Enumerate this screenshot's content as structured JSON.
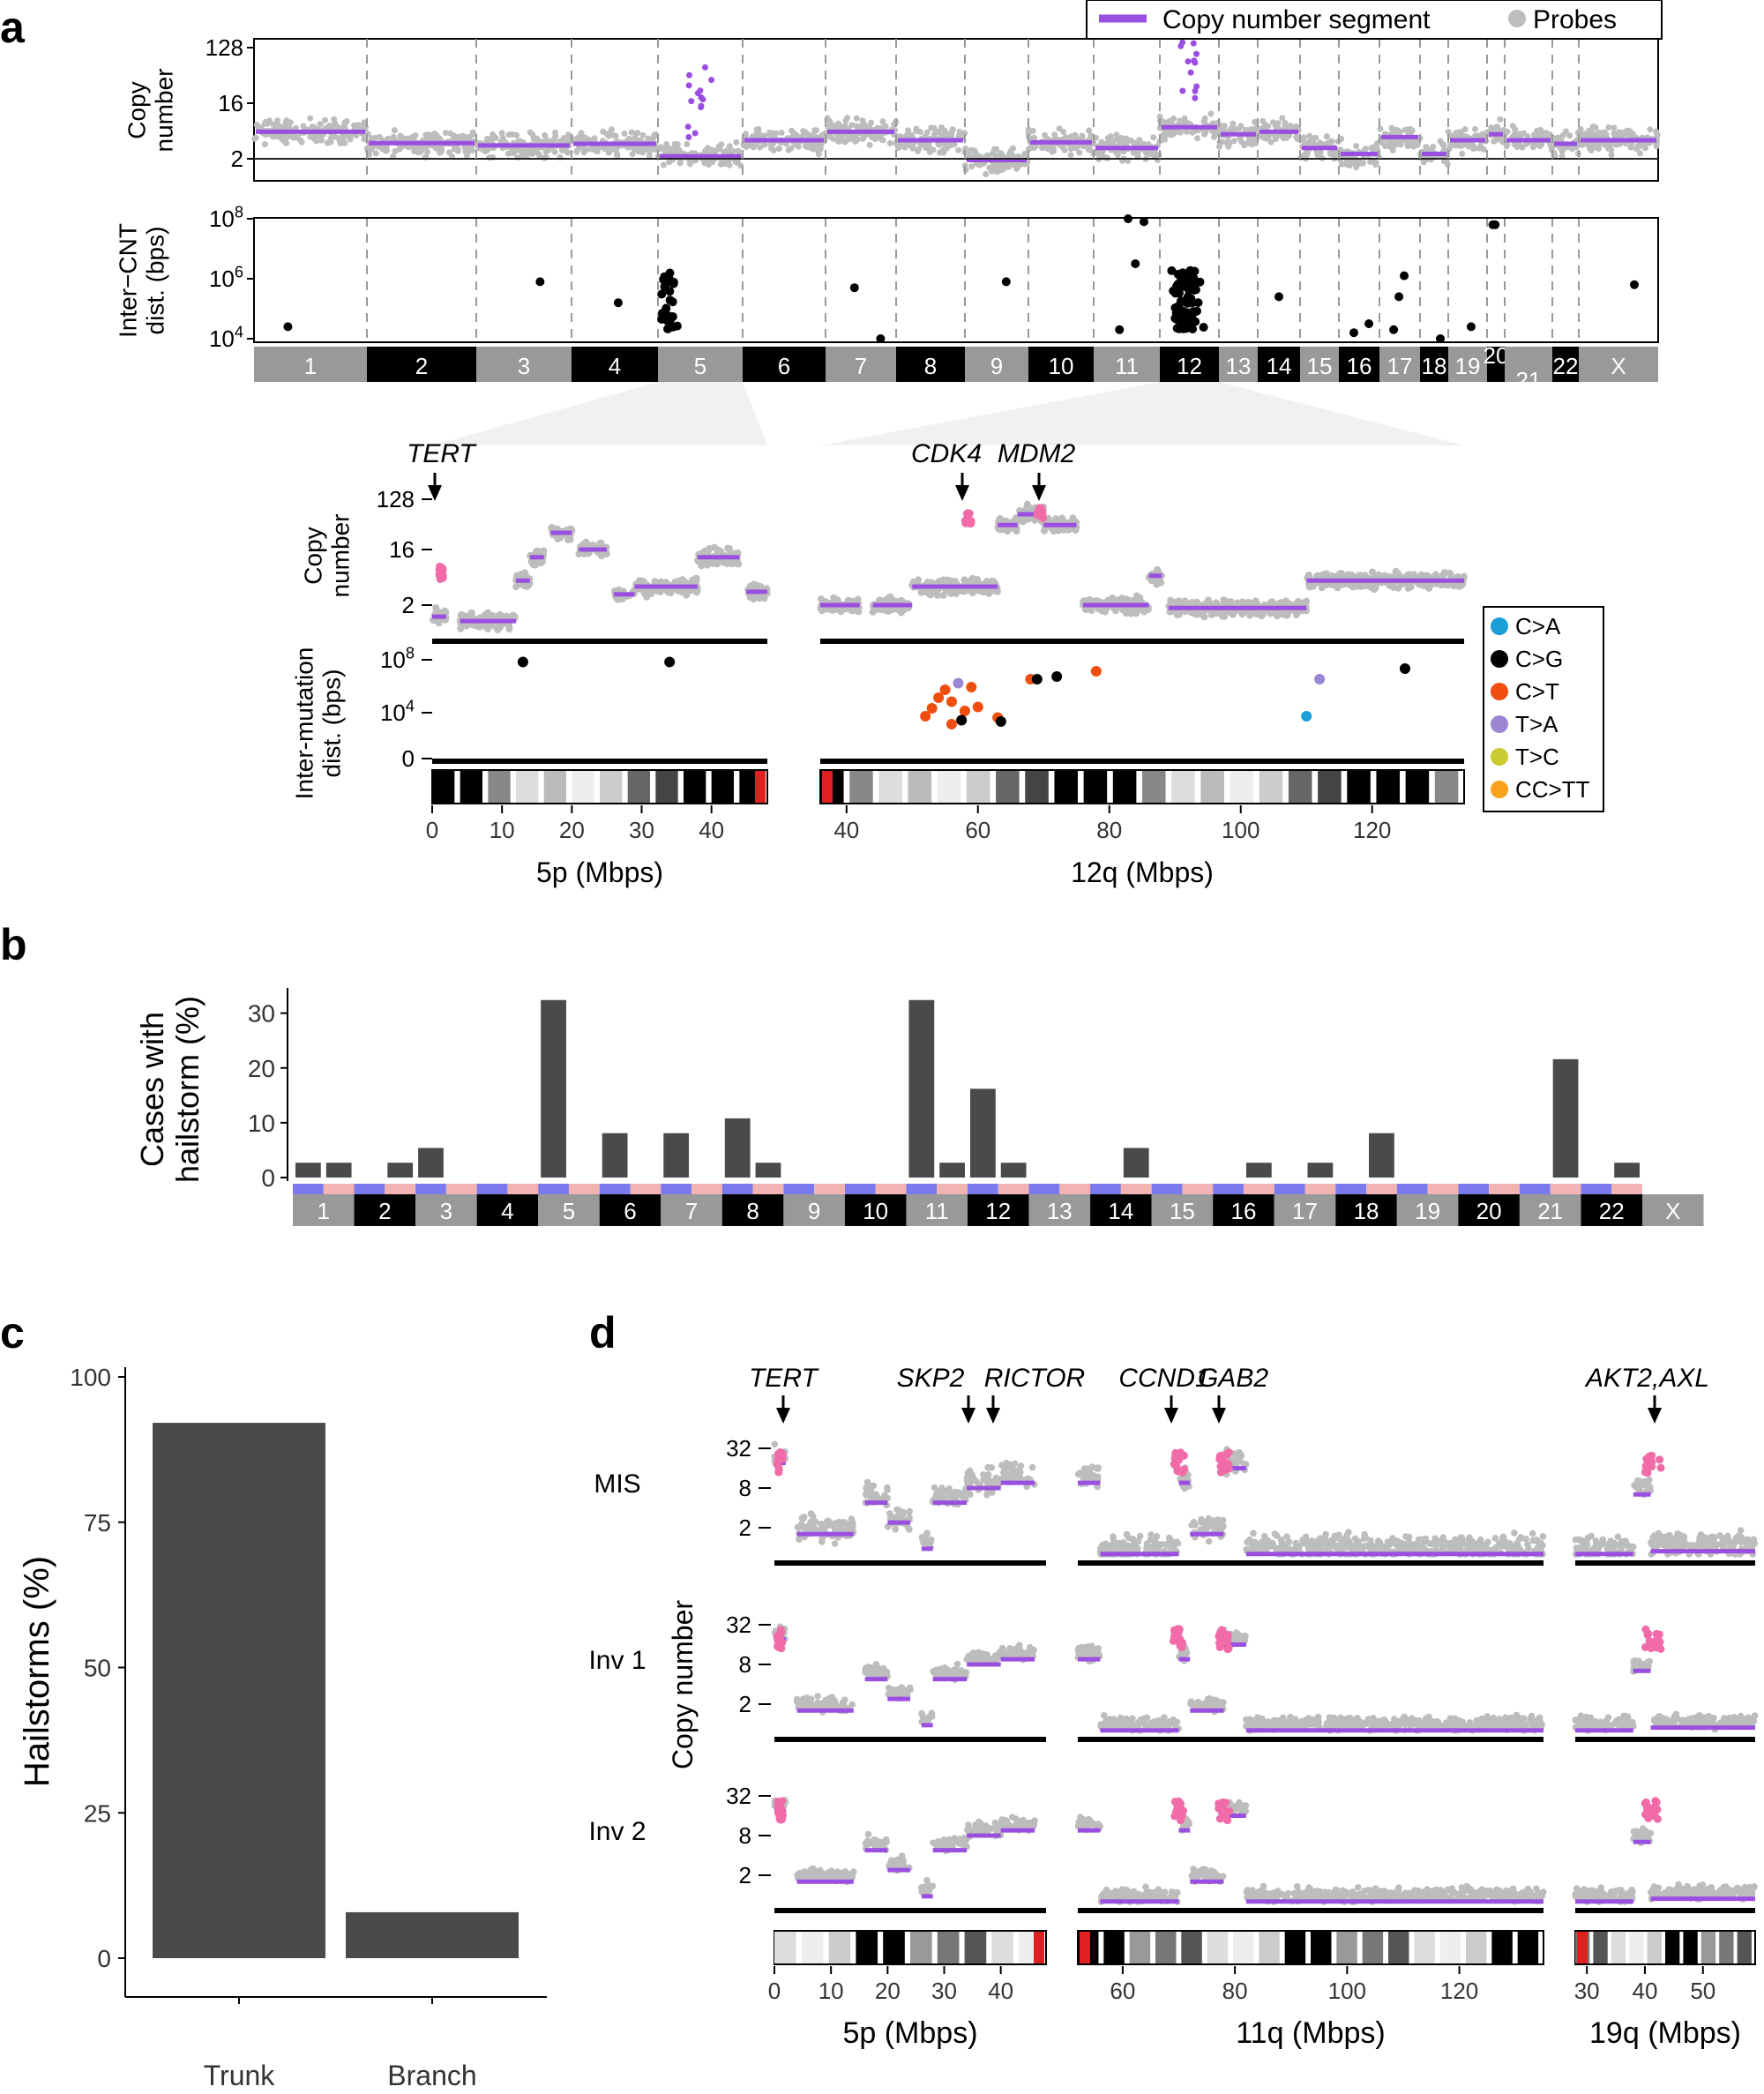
{
  "panels": {
    "a": "a",
    "b": "b",
    "c": "c",
    "d": "d"
  },
  "chart_data": [
    {
      "id": "a-top",
      "type": "scatter",
      "legend": [
        "Copy number segment",
        "Probes"
      ],
      "legend_position": "top-right",
      "colors": {
        "segment": "#9b4fe0",
        "probe": "#bdbdbd",
        "highlight": "#f06ba8"
      },
      "chromosomes": [
        "1",
        "2",
        "3",
        "4",
        "5",
        "6",
        "7",
        "8",
        "9",
        "10",
        "11",
        "12",
        "13",
        "14",
        "15",
        "16",
        "17",
        "18",
        "19",
        "20",
        "21",
        "22",
        "X"
      ],
      "chrom_shading": [
        "gray",
        "black",
        "gray",
        "black",
        "gray",
        "black",
        "gray",
        "black",
        "gray",
        "black",
        "gray",
        "black",
        "gray",
        "black",
        "gray",
        "black",
        "gray",
        "black",
        "gray",
        "black",
        "gray",
        "black",
        "gray"
      ],
      "copy_number": {
        "ylabel": "Copy\nnumber",
        "yscale": "log2",
        "yticks": [
          "2",
          "16",
          "128"
        ],
        "segments": [
          {
            "chrom": "1",
            "cn": 5.5
          },
          {
            "chrom": "2",
            "cn": 3.6
          },
          {
            "chrom": "3",
            "cn": 3.3
          },
          {
            "chrom": "4",
            "cn": 3.5
          },
          {
            "chrom": "5",
            "cn": 2.2
          },
          {
            "chrom": "6",
            "cn": 4.0
          },
          {
            "chrom": "7",
            "cn": 5.5
          },
          {
            "chrom": "8",
            "cn": 4.0
          },
          {
            "chrom": "9",
            "cn": 1.9
          },
          {
            "chrom": "10",
            "cn": 3.7
          },
          {
            "chrom": "11",
            "cn": 3.0
          },
          {
            "chrom": "12",
            "cn": 6.5
          },
          {
            "chrom": "13",
            "cn": 5.0
          },
          {
            "chrom": "14",
            "cn": 5.5
          },
          {
            "chrom": "15",
            "cn": 3.0
          },
          {
            "chrom": "16",
            "cn": 2.4
          },
          {
            "chrom": "17",
            "cn": 4.5
          },
          {
            "chrom": "18",
            "cn": 2.4
          },
          {
            "chrom": "19",
            "cn": 4.0
          },
          {
            "chrom": "20",
            "cn": 5.0
          },
          {
            "chrom": "21",
            "cn": 4.0
          },
          {
            "chrom": "22",
            "cn": 3.5
          },
          {
            "chrom": "X",
            "cn": 4.0
          }
        ],
        "amplified_regions": [
          {
            "chrom": "5",
            "max_cn": 40
          },
          {
            "chrom": "12",
            "max_cn": 128
          }
        ]
      },
      "inter_cnt": {
        "ylabel": "Inter−CNT\ndist. (bps)",
        "yscale": "log10",
        "yticks": [
          "10^4",
          "10^6",
          "10^8"
        ],
        "points": [
          {
            "chrom": "1",
            "log10": 4.4
          },
          {
            "chrom": "3",
            "log10": 5.9
          },
          {
            "chrom": "4",
            "log10": 5.2
          },
          {
            "chrom": "7",
            "log10": 5.7
          },
          {
            "chrom": "7",
            "log10": 4.0
          },
          {
            "chrom": "9",
            "log10": 5.9
          },
          {
            "chrom": "11",
            "log10": 8.0
          },
          {
            "chrom": "11",
            "log10": 4.3
          },
          {
            "chrom": "11",
            "log10": 7.9
          },
          {
            "chrom": "11",
            "log10": 6.5
          },
          {
            "chrom": "14",
            "log10": 5.4
          },
          {
            "chrom": "16",
            "log10": 4.2
          },
          {
            "chrom": "16",
            "log10": 4.5
          },
          {
            "chrom": "17",
            "log10": 6.1
          },
          {
            "chrom": "17",
            "log10": 5.4
          },
          {
            "chrom": "17",
            "log10": 4.3
          },
          {
            "chrom": "18",
            "log10": 4.0
          },
          {
            "chrom": "19",
            "log10": 4.4
          },
          {
            "chrom": "20",
            "log10": 7.8
          },
          {
            "chrom": "20",
            "log10": 7.8
          },
          {
            "chrom": "X",
            "log10": 5.8
          }
        ]
      }
    },
    {
      "id": "a-zoom",
      "type": "scatter",
      "genes": {
        "left": [
          "TERT"
        ],
        "right": [
          "CDK4",
          "MDM2"
        ]
      },
      "copy_number_ylabel": "Copy\nnumber",
      "copy_number_yticks": [
        "2",
        "16",
        "128"
      ],
      "intermutation_ylabel": "Inter-mutation\ndist. (bps)",
      "intermutation_yticks": [
        "0",
        "10^4",
        "10^8"
      ],
      "legend": [
        {
          "label": "C>A",
          "color": "#1a9ed8"
        },
        {
          "label": "C>G",
          "color": "#000000"
        },
        {
          "label": "C>T",
          "color": "#f04e0f"
        },
        {
          "label": "T>A",
          "color": "#9a86d2"
        },
        {
          "label": "T>C",
          "color": "#c8cc30"
        },
        {
          "label": "CC>TT",
          "color": "#f9a11b"
        }
      ],
      "left_xlabel": "5p (Mbps)",
      "left_xticks": [
        0,
        10,
        20,
        30,
        40
      ],
      "left_xlim": [
        0,
        48
      ],
      "right_xlabel": "12q (Mbps)",
      "right_xticks": [
        40,
        60,
        80,
        100,
        120
      ],
      "right_xlim": [
        36,
        134
      ],
      "left_segments": [
        {
          "x0": 0,
          "x1": 2,
          "cn": 1.3
        },
        {
          "x0": 4,
          "x1": 12,
          "cn": 1.1
        },
        {
          "x0": 12,
          "x1": 14,
          "cn": 5
        },
        {
          "x0": 14,
          "x1": 16,
          "cn": 12
        },
        {
          "x0": 17,
          "x1": 20,
          "cn": 30
        },
        {
          "x0": 21,
          "x1": 25,
          "cn": 16
        },
        {
          "x0": 26,
          "x1": 29,
          "cn": 3
        },
        {
          "x0": 29,
          "x1": 34,
          "cn": 4
        },
        {
          "x0": 34,
          "x1": 38,
          "cn": 4
        },
        {
          "x0": 38,
          "x1": 44,
          "cn": 12
        },
        {
          "x0": 45,
          "x1": 48,
          "cn": 3.3
        }
      ],
      "left_mutations": [
        {
          "x": 13,
          "log10": 7.3,
          "type": "C>G"
        },
        {
          "x": 34,
          "log10": 7.3,
          "type": "C>G"
        }
      ],
      "right_segments": [
        {
          "x0": 36,
          "x1": 42,
          "cn": 2
        },
        {
          "x0": 44,
          "x1": 50,
          "cn": 2
        },
        {
          "x0": 50,
          "x1": 56,
          "cn": 4
        },
        {
          "x0": 56,
          "x1": 63,
          "cn": 4
        },
        {
          "x0": 63,
          "x1": 66,
          "cn": 40
        },
        {
          "x0": 66,
          "x1": 70,
          "cn": 60
        },
        {
          "x0": 70,
          "x1": 75,
          "cn": 40
        },
        {
          "x0": 76,
          "x1": 86,
          "cn": 2
        },
        {
          "x0": 86,
          "x1": 88,
          "cn": 6
        },
        {
          "x0": 89,
          "x1": 110,
          "cn": 1.8
        },
        {
          "x0": 110,
          "x1": 134,
          "cn": 5
        }
      ],
      "right_mutations": [
        {
          "x": 52,
          "log10": 3.2,
          "type": "C>T"
        },
        {
          "x": 53,
          "log10": 3.8,
          "type": "C>T"
        },
        {
          "x": 54,
          "log10": 4.6,
          "type": "C>T"
        },
        {
          "x": 55,
          "log10": 5.2,
          "type": "C>T"
        },
        {
          "x": 56,
          "log10": 4.3,
          "type": "C>T"
        },
        {
          "x": 57,
          "log10": 5.7,
          "type": "T>A"
        },
        {
          "x": 58,
          "log10": 3.6,
          "type": "C>T"
        },
        {
          "x": 59,
          "log10": 5.4,
          "type": "C>T"
        },
        {
          "x": 60,
          "log10": 3.9,
          "type": "C>T"
        },
        {
          "x": 57.5,
          "log10": 2.9,
          "type": "C>G"
        },
        {
          "x": 56,
          "log10": 2.6,
          "type": "C>T"
        },
        {
          "x": 63,
          "log10": 3.1,
          "type": "C>T"
        },
        {
          "x": 63.5,
          "log10": 2.8,
          "type": "C>G"
        },
        {
          "x": 68,
          "log10": 6.0,
          "type": "C>T"
        },
        {
          "x": 69,
          "log10": 6.0,
          "type": "C>G"
        },
        {
          "x": 72,
          "log10": 6.2,
          "type": "C>G"
        },
        {
          "x": 78,
          "log10": 6.6,
          "type": "C>T"
        },
        {
          "x": 110,
          "log10": 3.2,
          "type": "C>A"
        },
        {
          "x": 112,
          "log10": 6.0,
          "type": "T>A"
        },
        {
          "x": 125,
          "log10": 6.8,
          "type": "C>G"
        }
      ]
    },
    {
      "id": "b",
      "type": "bar",
      "ylabel": "Cases with\nhailstorm (%)",
      "ylim": [
        0,
        33
      ],
      "yticks": [
        0,
        10,
        20,
        30
      ],
      "chromosomes": [
        "1",
        "2",
        "3",
        "4",
        "5",
        "6",
        "7",
        "8",
        "9",
        "10",
        "11",
        "12",
        "13",
        "14",
        "15",
        "16",
        "17",
        "18",
        "19",
        "20",
        "21",
        "22",
        "X"
      ],
      "arm_values": [
        2.7,
        2.7,
        0,
        2.7,
        5.4,
        0,
        0,
        0,
        32.4,
        0,
        8.1,
        0,
        8.1,
        0,
        10.8,
        2.7,
        0,
        0,
        0,
        0,
        32.4,
        2.7,
        16.2,
        2.7,
        0,
        0,
        0,
        5.4,
        0,
        0,
        0,
        2.7,
        0,
        2.7,
        0,
        8.1,
        0,
        0,
        0,
        0,
        0,
        21.6,
        0,
        2.7
      ]
    },
    {
      "id": "c",
      "type": "bar",
      "categories": [
        "Trunk",
        "Branch"
      ],
      "values": [
        92.1,
        7.9
      ],
      "ylabel": "Hailstorms (%)",
      "ylim": [
        0,
        100
      ],
      "yticks": [
        0,
        25,
        50,
        75,
        100
      ]
    },
    {
      "id": "d",
      "type": "scatter",
      "ylabel": "Copy number",
      "rows": [
        "MIS",
        "Inv 1",
        "Inv 2"
      ],
      "yticks": [
        "2",
        "8",
        "32"
      ],
      "genes": [
        "TERT",
        "SKP2",
        "RICTOR",
        "CCND1",
        "GAB2",
        "AKT2,AXL"
      ],
      "panels": [
        {
          "xlabel": "5p (Mbps)",
          "xticks": [
            0,
            10,
            20,
            30,
            40
          ],
          "xlim": [
            0,
            48
          ]
        },
        {
          "xlabel": "11q (Mbps)",
          "xticks": [
            60,
            80,
            100,
            120
          ],
          "xlim": [
            52,
            135
          ]
        },
        {
          "xlabel": "19q (Mbps)",
          "xticks": [
            30,
            40,
            50
          ],
          "xlim": [
            28,
            59
          ]
        }
      ]
    }
  ]
}
